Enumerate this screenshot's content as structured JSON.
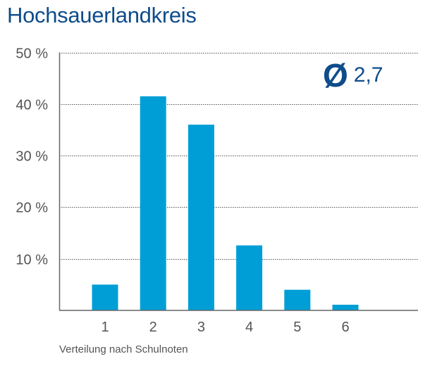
{
  "chart_data": {
    "type": "bar",
    "title": "Hochsauerlandkreis",
    "xlabel": "Verteilung nach Schulnoten",
    "ylabel": "",
    "categories": [
      "1",
      "2",
      "3",
      "4",
      "5",
      "6"
    ],
    "values": [
      5.0,
      41.5,
      36.0,
      12.6,
      4.0,
      1.1
    ],
    "ylim": [
      0,
      50
    ],
    "yticks": [
      10,
      20,
      30,
      40,
      50
    ],
    "ytick_labels": [
      "10 %",
      "20 %",
      "30 %",
      "40 %",
      "50 %"
    ],
    "grid": true,
    "bar_color": "#009ed6",
    "annotation": {
      "symbol": "Ø",
      "value": "2,7",
      "color": "#0f4c8a"
    }
  }
}
